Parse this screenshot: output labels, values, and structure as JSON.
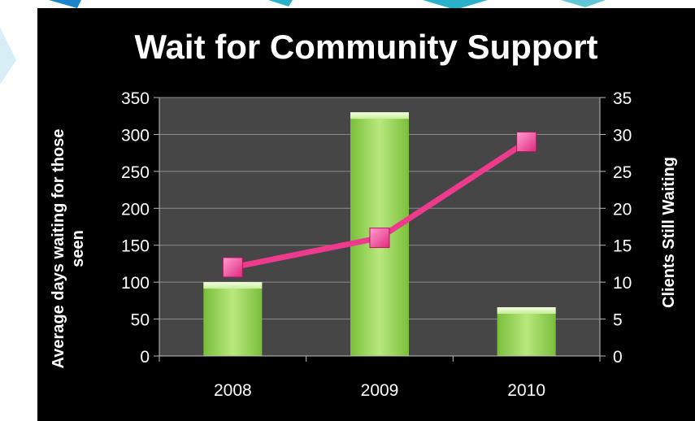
{
  "chart_data": {
    "type": "bar",
    "title": "Wait for Community Support",
    "categories": [
      "2008",
      "2009",
      "2010"
    ],
    "series": [
      {
        "name": "Average days waiting for those seen",
        "type": "bar",
        "axis": "left",
        "values": [
          100,
          330,
          66
        ]
      },
      {
        "name": "Clients Still Waiting",
        "type": "line",
        "axis": "right",
        "values": [
          12,
          16,
          29
        ]
      }
    ],
    "ylabel": "Average days waiting for those seen",
    "y2label": "Clients Still Waiting",
    "ylim": [
      0,
      350
    ],
    "y2lim": [
      0,
      35
    ],
    "yticks": [
      "0",
      "50",
      "100",
      "150",
      "200",
      "250",
      "300",
      "350"
    ],
    "y2ticks": [
      "0",
      "5",
      "10",
      "15",
      "20",
      "25",
      "30",
      "35"
    ],
    "grid": true,
    "colors": {
      "bar": "#8fd14f",
      "line": "#ee3a8c",
      "plot_background": "#464646",
      "background": "#000000",
      "text": "#ffffff"
    }
  }
}
